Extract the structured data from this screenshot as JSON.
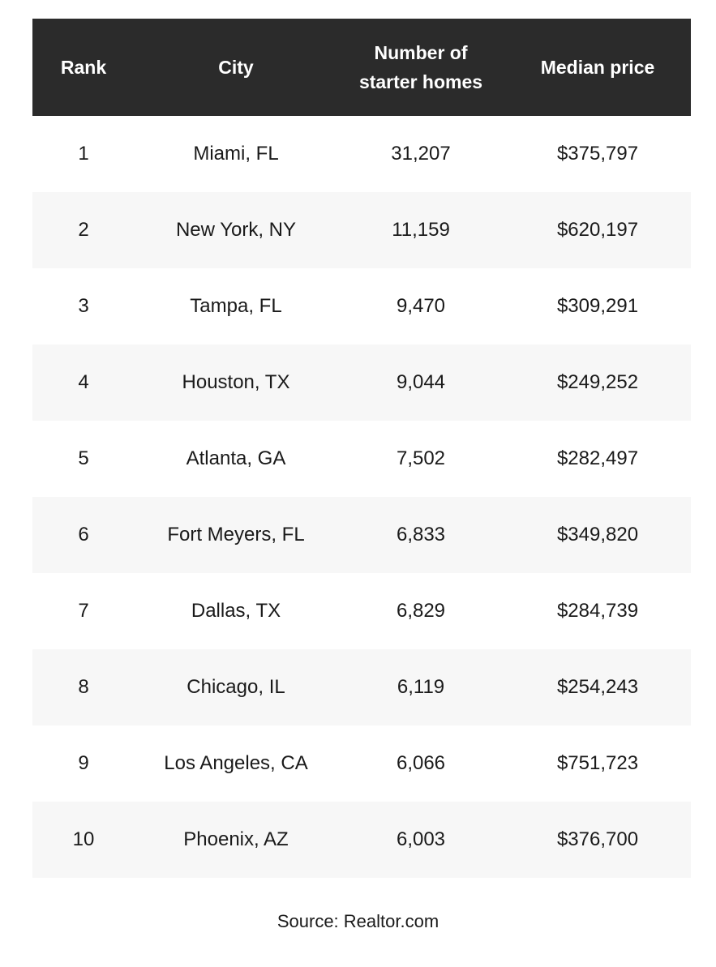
{
  "table": {
    "header": [
      "Rank",
      "City",
      "Number of starter homes",
      "Median price"
    ],
    "rows": [
      [
        "1",
        "Miami, FL",
        "31,207",
        "$375,797"
      ],
      [
        "2",
        "New York, NY",
        "11,159",
        "$620,197"
      ],
      [
        "3",
        "Tampa, FL",
        "9,470",
        "$309,291"
      ],
      [
        "4",
        "Houston, TX",
        "9,044",
        "$249,252"
      ],
      [
        "5",
        "Atlanta, GA",
        "7,502",
        "$282,497"
      ],
      [
        "6",
        "Fort Meyers, FL",
        "6,833",
        "$349,820"
      ],
      [
        "7",
        "Dallas, TX",
        "6,829",
        "$284,739"
      ],
      [
        "8",
        "Chicago, IL",
        "6,119",
        "$254,243"
      ],
      [
        "9",
        "Los Angeles, CA",
        "6,066",
        "$751,723"
      ],
      [
        "10",
        "Phoenix, AZ",
        "6,003",
        "$376,700"
      ]
    ]
  },
  "source": "Source: Realtor.com"
}
